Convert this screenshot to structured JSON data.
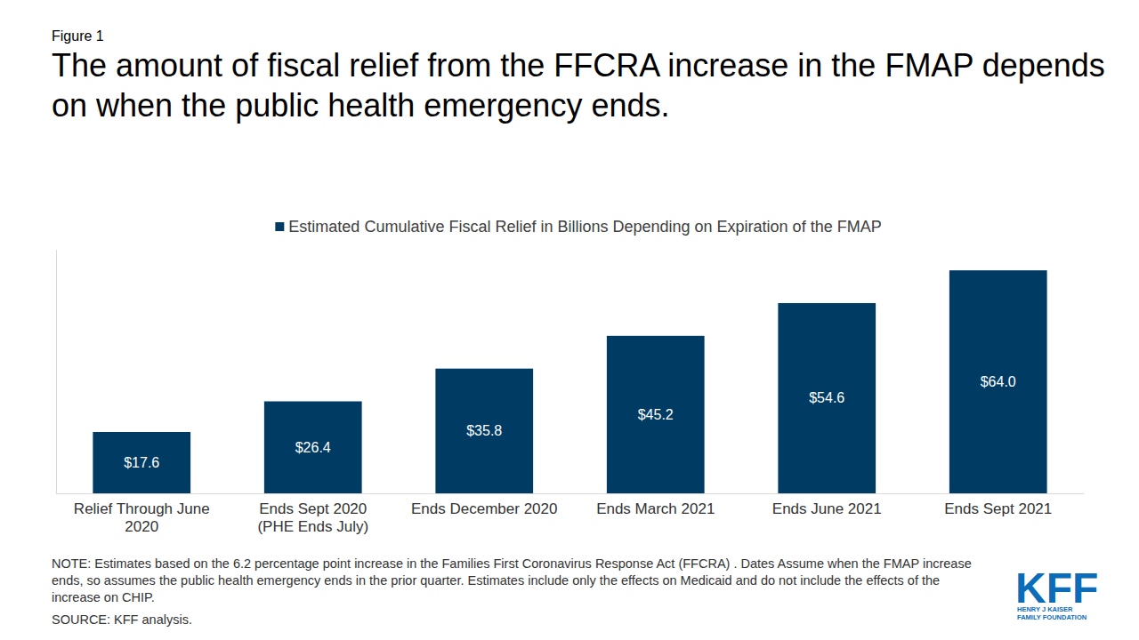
{
  "chart_data": {
    "type": "bar",
    "figure_label": "Figure 1",
    "title": "The amount of fiscal relief from the FFCRA increase in the FMAP depends on when the public health emergency ends.",
    "categories": [
      "Relief Through June 2020",
      "Ends Sept 2020 (PHE Ends July)",
      "Ends December 2020",
      "Ends March 2021",
      "Ends June 2021",
      "Ends Sept 2021"
    ],
    "series": [
      {
        "name": "Estimated Cumulative Fiscal Relief in Billions Depending on Expiration of the FMAP",
        "color": "#003b64",
        "values": [
          17.6,
          26.4,
          35.8,
          45.2,
          54.6,
          64.0
        ],
        "value_labels": [
          "$17.6",
          "$26.4",
          "$35.8",
          "$45.2",
          "$54.6",
          "$64.0"
        ]
      }
    ],
    "ylim": [
      0,
      70
    ],
    "grid": false,
    "legend": "top",
    "data_labels": true,
    "tick_labels": "x",
    "note": "NOTE:  Estimates based on the 6.2 percentage point increase in the Families First Coronavirus Response Act (FFCRA). Dates Assume when the FMAP increase ends, so assumes the public health emergency ends in the prior quarter. Estimates include only the effects on Medicaid and do not include the effects of the increase on CHIP.",
    "source": "SOURCE: KFF analysis.",
    "logo_text": "KFF",
    "logo_subtitle": [
      "HENRY J KAISER",
      "FAMILY FOUNDATION"
    ]
  }
}
